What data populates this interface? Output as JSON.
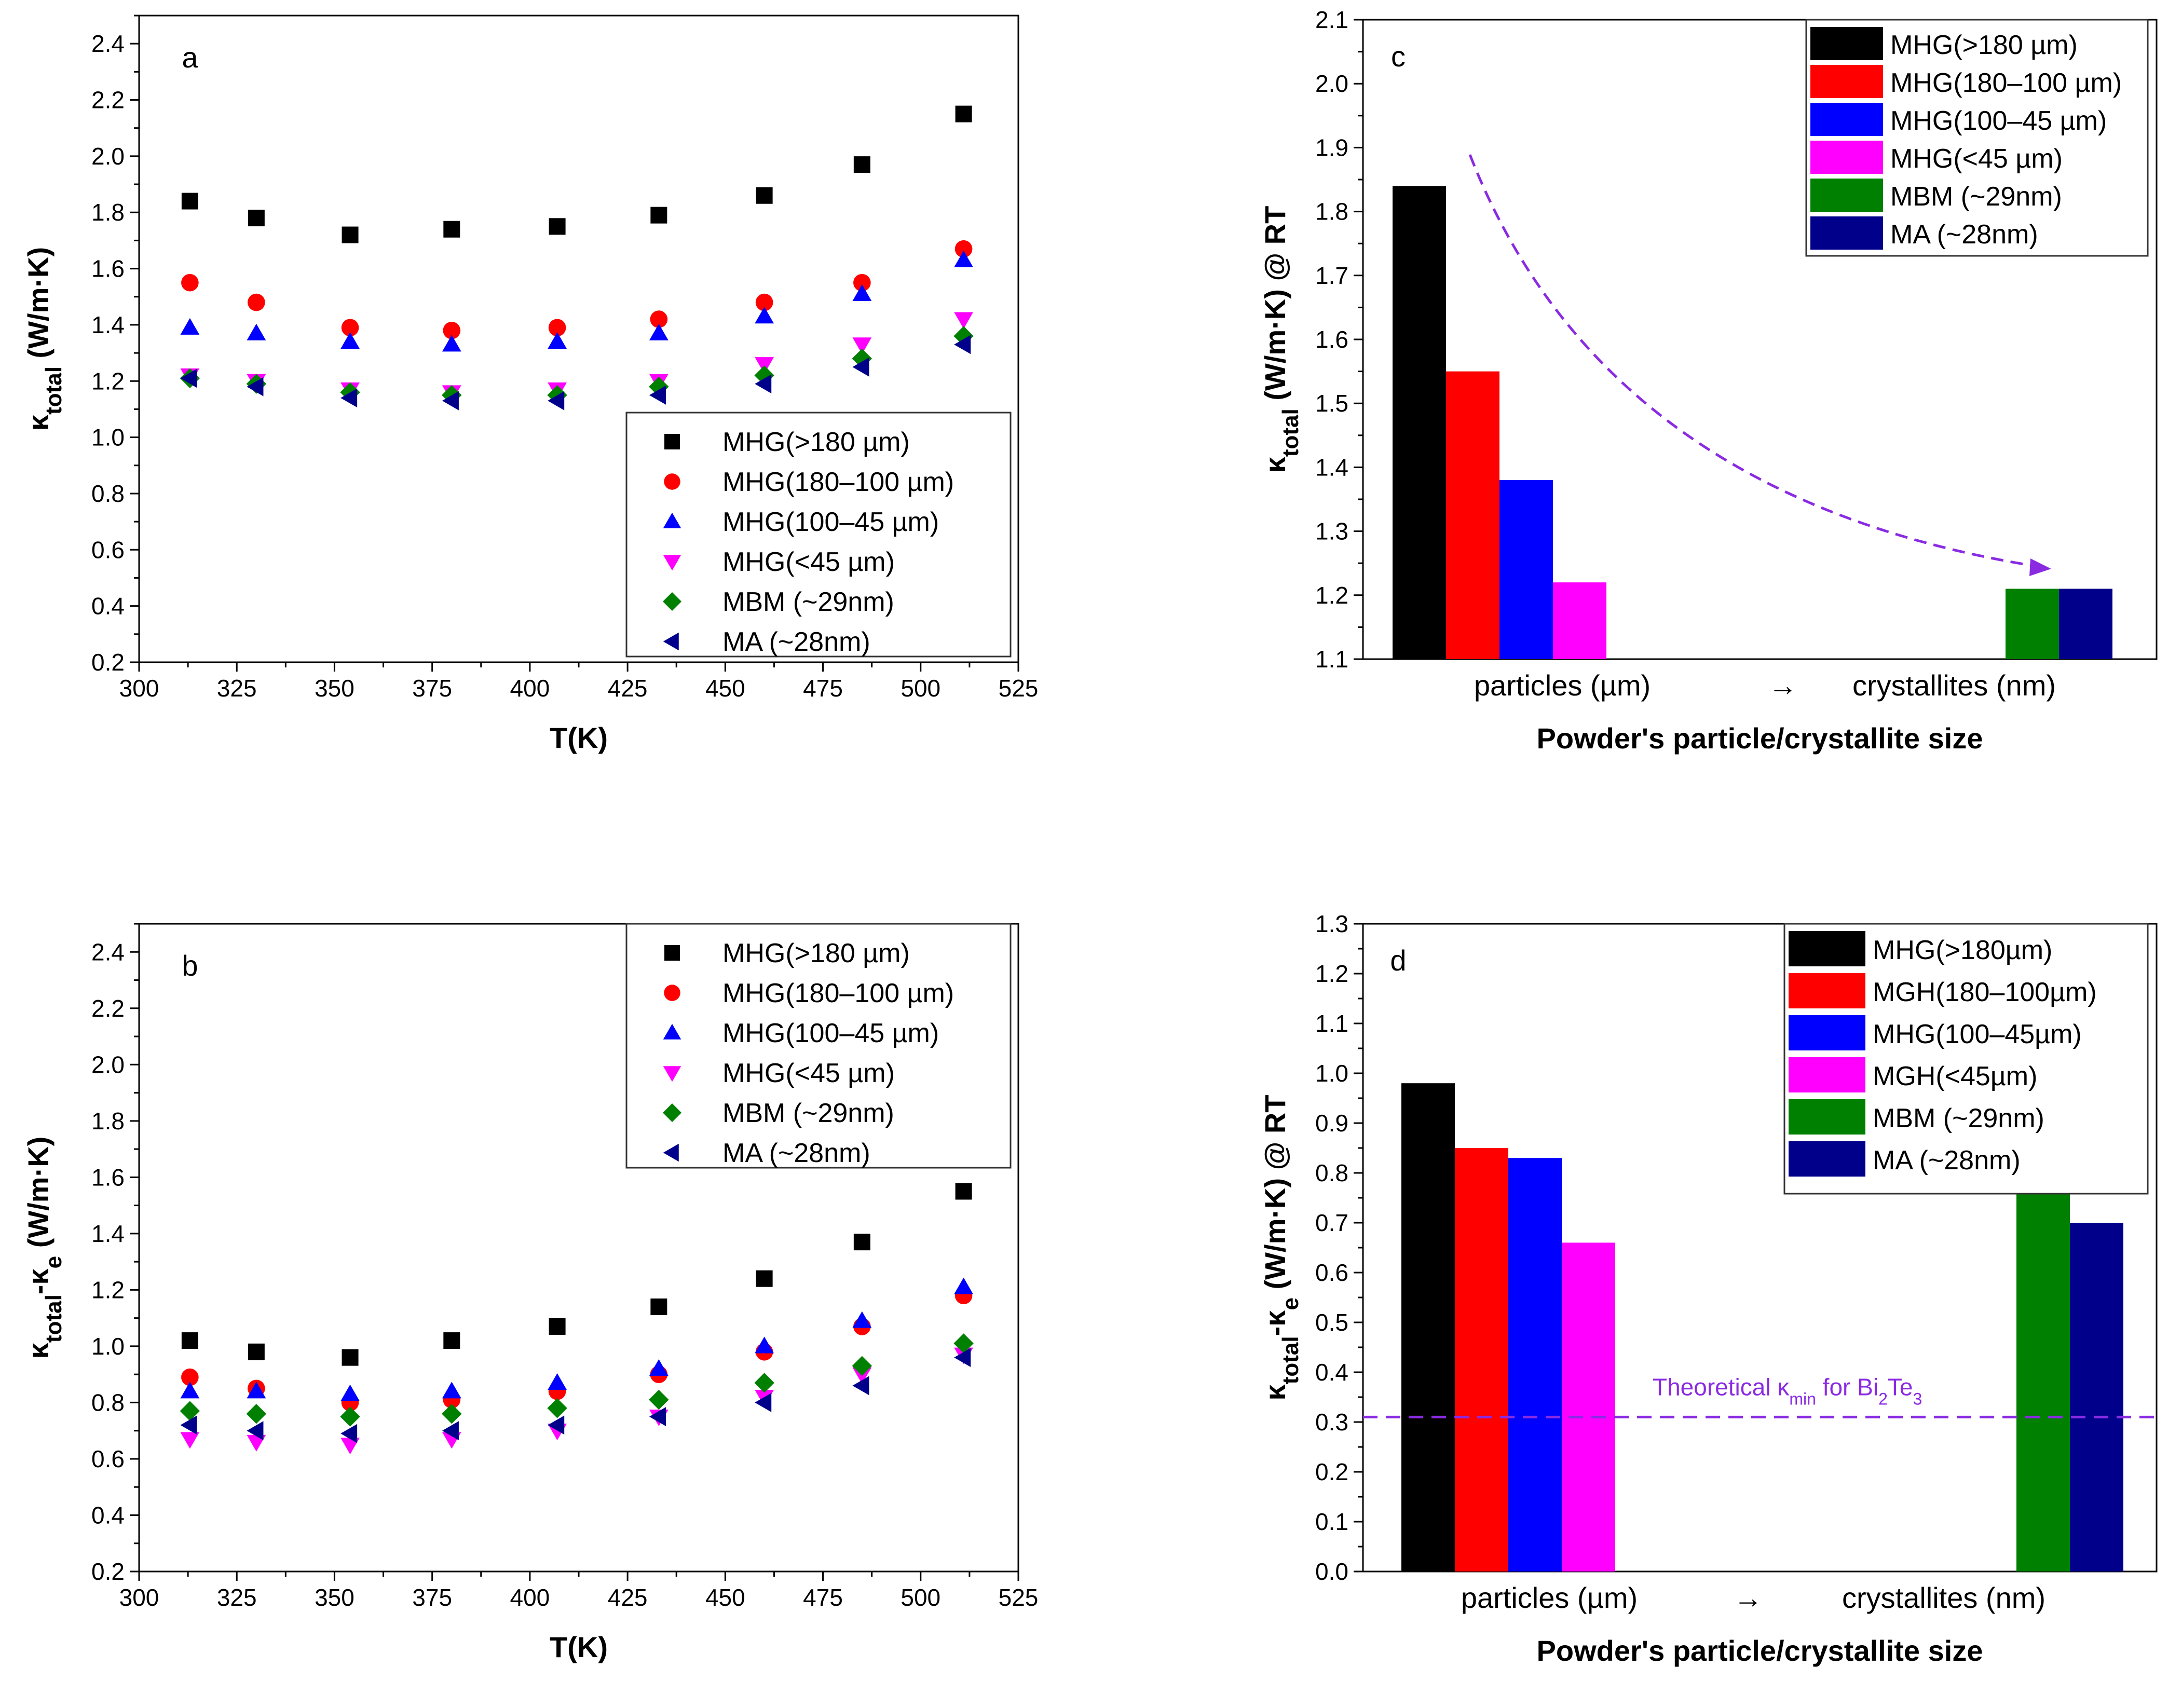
{
  "chart_data": [
    {
      "id": "a",
      "type": "scatter",
      "panel_label": "a",
      "xlabel": "T(K)",
      "ylabel": {
        "main": "κ",
        "sub": "total",
        "rest": " (W/m·K)"
      },
      "xlim": [
        300,
        525
      ],
      "ylim": [
        0.2,
        2.5
      ],
      "xticks": [
        "300",
        "325",
        "350",
        "375",
        "400",
        "425",
        "450",
        "475",
        "500",
        "525"
      ],
      "yticks": [
        "0.2",
        "0.4",
        "0.6",
        "0.8",
        "1.0",
        "1.2",
        "1.4",
        "1.6",
        "1.8",
        "2.0",
        "2.2",
        "2.4"
      ],
      "legend_position": "bottom-right",
      "x": [
        313,
        330,
        354,
        380,
        407,
        433,
        460,
        485,
        511
      ],
      "series": [
        {
          "name": "MHG(>180 µm)",
          "marker": "square",
          "color": "#000000",
          "values": [
            1.84,
            1.78,
            1.72,
            1.74,
            1.75,
            1.79,
            1.86,
            1.97,
            2.15
          ]
        },
        {
          "name": "MHG(180–100 µm)",
          "marker": "circle",
          "color": "#ff0000",
          "values": [
            1.55,
            1.48,
            1.39,
            1.38,
            1.39,
            1.42,
            1.48,
            1.55,
            1.67
          ]
        },
        {
          "name": "MHG(100–45 µm)",
          "marker": "triangle-up",
          "color": "#0000ff",
          "values": [
            1.39,
            1.37,
            1.34,
            1.33,
            1.34,
            1.37,
            1.43,
            1.51,
            1.63
          ]
        },
        {
          "name": "MHG(<45 µm)",
          "marker": "triangle-down",
          "color": "#ff00ff",
          "values": [
            1.22,
            1.2,
            1.17,
            1.16,
            1.17,
            1.2,
            1.26,
            1.33,
            1.42
          ]
        },
        {
          "name": "MBM (~29nm)",
          "marker": "diamond",
          "color": "#008000",
          "values": [
            1.21,
            1.19,
            1.16,
            1.15,
            1.15,
            1.18,
            1.22,
            1.28,
            1.36
          ]
        },
        {
          "name": "MA (~28nm)",
          "marker": "triangle-left",
          "color": "#00008b",
          "values": [
            1.21,
            1.18,
            1.14,
            1.13,
            1.13,
            1.15,
            1.19,
            1.25,
            1.33
          ]
        }
      ]
    },
    {
      "id": "b",
      "type": "scatter",
      "panel_label": "b",
      "xlabel": "T(K)",
      "ylabel": {
        "main": "κ",
        "sub": "total",
        "mid": "-κ",
        "sub2": "e",
        "rest": " (W/m·K)"
      },
      "xlim": [
        300,
        525
      ],
      "ylim": [
        0.2,
        2.5
      ],
      "xticks": [
        "300",
        "325",
        "350",
        "375",
        "400",
        "425",
        "450",
        "475",
        "500",
        "525"
      ],
      "yticks": [
        "0.2",
        "0.4",
        "0.6",
        "0.8",
        "1.0",
        "1.2",
        "1.4",
        "1.6",
        "1.8",
        "2.0",
        "2.2",
        "2.4"
      ],
      "legend_position": "top-right",
      "x": [
        313,
        330,
        354,
        380,
        407,
        433,
        460,
        485,
        511
      ],
      "series": [
        {
          "name": "MHG(>180 µm)",
          "marker": "square",
          "color": "#000000",
          "values": [
            1.02,
            0.98,
            0.96,
            1.02,
            1.07,
            1.14,
            1.24,
            1.37,
            1.55
          ]
        },
        {
          "name": "MHG(180–100 µm)",
          "marker": "circle",
          "color": "#ff0000",
          "values": [
            0.89,
            0.85,
            0.8,
            0.81,
            0.84,
            0.9,
            0.98,
            1.07,
            1.18
          ]
        },
        {
          "name": "MHG(100–45 µm)",
          "marker": "triangle-up",
          "color": "#0000ff",
          "values": [
            0.84,
            0.84,
            0.83,
            0.84,
            0.87,
            0.92,
            1.0,
            1.09,
            1.21
          ]
        },
        {
          "name": "MHG(<45 µm)",
          "marker": "triangle-down",
          "color": "#ff00ff",
          "values": [
            0.67,
            0.66,
            0.65,
            0.67,
            0.7,
            0.75,
            0.82,
            0.9,
            0.97
          ]
        },
        {
          "name": "MBM (~29nm)",
          "marker": "diamond",
          "color": "#008000",
          "values": [
            0.77,
            0.76,
            0.75,
            0.76,
            0.78,
            0.81,
            0.87,
            0.93,
            1.01
          ]
        },
        {
          "name": "MA (~28nm)",
          "marker": "triangle-left",
          "color": "#00008b",
          "values": [
            0.72,
            0.7,
            0.69,
            0.7,
            0.72,
            0.75,
            0.8,
            0.86,
            0.96
          ]
        }
      ]
    },
    {
      "id": "c",
      "type": "bar",
      "panel_label": "c",
      "xlabel": "Powder's particle/crystallite size",
      "ylabel": {
        "main": "κ",
        "sub": "total",
        "rest": " (W/m·K)  @ RT"
      },
      "ylim": [
        1.1,
        2.1
      ],
      "yticks": [
        "1.1",
        "1.2",
        "1.3",
        "1.4",
        "1.5",
        "1.6",
        "1.7",
        "1.8",
        "1.9",
        "2.0",
        "2.1"
      ],
      "category_labels": [
        "particles (µm)",
        "→",
        "crystallites (nm)"
      ],
      "legend_position": "top-right",
      "annotation": "dashed arrow from particles to crystallites",
      "series": [
        {
          "name": "MHG(>180 µm)",
          "color": "#000000",
          "value": 1.84
        },
        {
          "name": "MHG(180–100 µm)",
          "color": "#ff0000",
          "value": 1.55
        },
        {
          "name": "MHG(100–45 µm)",
          "color": "#0000ff",
          "value": 1.38
        },
        {
          "name": "MHG(<45 µm)",
          "color": "#ff00ff",
          "value": 1.22
        },
        {
          "name": "MBM (~29nm)",
          "color": "#008000",
          "value": 1.21
        },
        {
          "name": "MA (~28nm)",
          "color": "#00008b",
          "value": 1.21
        }
      ]
    },
    {
      "id": "d",
      "type": "bar",
      "panel_label": "d",
      "xlabel": "Powder's particle/crystallite size",
      "ylabel": {
        "main": "κ",
        "sub": "total",
        "mid": "-κ",
        "sub2": "e",
        "rest": " (W/m·K) @ RT"
      },
      "ylim": [
        0.0,
        1.3
      ],
      "yticks": [
        "0.0",
        "0.1",
        "0.2",
        "0.3",
        "0.4",
        "0.5",
        "0.6",
        "0.7",
        "0.8",
        "0.9",
        "1.0",
        "1.1",
        "1.2",
        "1.3"
      ],
      "category_labels": [
        "particles (µm)",
        "→",
        "crystallites (nm)"
      ],
      "legend_position": "top-right",
      "reference_line": {
        "value": 0.31,
        "label_prefix": "Theoretical κ",
        "label_sub": "min",
        "label_mid": " for Bi",
        "label_sub2": "2",
        "label_mid2": "Te",
        "label_sub3": "3"
      },
      "series": [
        {
          "name": "MHG(>180µm)",
          "color": "#000000",
          "value": 0.98
        },
        {
          "name": "MGH(180–100µm)",
          "color": "#ff0000",
          "value": 0.85
        },
        {
          "name": "MHG(100–45µm)",
          "color": "#0000ff",
          "value": 0.83
        },
        {
          "name": "MGH(<45µm)",
          "color": "#ff00ff",
          "value": 0.66
        },
        {
          "name": "MBM (~29nm)",
          "color": "#008000",
          "value": 0.76
        },
        {
          "name": "MA (~28nm)",
          "color": "#00008b",
          "value": 0.7
        }
      ]
    }
  ]
}
